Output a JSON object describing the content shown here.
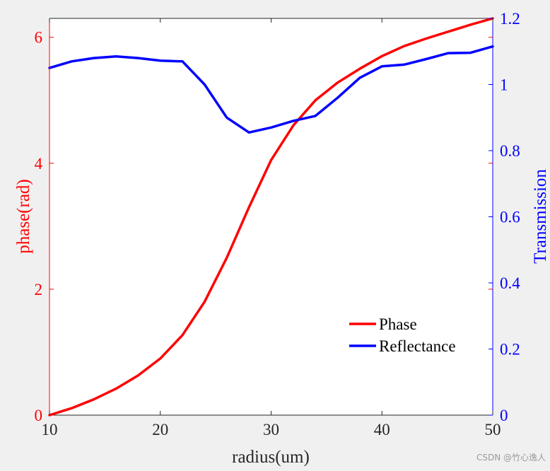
{
  "chart_data": {
    "type": "line",
    "xlabel": "radius(um)",
    "ylabel_left": "phase(rad)",
    "ylabel_right": "Transmission",
    "xlim": [
      10,
      50
    ],
    "ylim_left": [
      0,
      6.3
    ],
    "ylim_right": [
      0,
      1.2
    ],
    "x_ticks": [
      10,
      20,
      30,
      40,
      50
    ],
    "y_ticks_left": [
      0,
      2,
      4,
      6
    ],
    "y_ticks_right": [
      0,
      0.2,
      0.4,
      0.6,
      0.8,
      1,
      1.2
    ],
    "grid": false,
    "legend_position": "bottom-right",
    "colors": {
      "left_axis": "#ff0000",
      "right_axis": "#0000ff",
      "axis": "#262626"
    },
    "series": [
      {
        "name": "Phase",
        "axis": "left",
        "color": "#ff0000",
        "x": [
          10,
          12,
          14,
          16,
          18,
          20,
          22,
          24,
          26,
          28,
          30,
          32,
          34,
          36,
          38,
          40,
          42,
          44,
          46,
          48,
          50
        ],
        "values": [
          0,
          0.11,
          0.25,
          0.42,
          0.63,
          0.9,
          1.27,
          1.8,
          2.5,
          3.3,
          4.05,
          4.6,
          5.0,
          5.28,
          5.5,
          5.7,
          5.86,
          5.98,
          6.09,
          6.2,
          6.3
        ]
      },
      {
        "name": "Reflectance",
        "axis": "right",
        "color": "#0000ff",
        "x": [
          10,
          12,
          14,
          16,
          18,
          20,
          22,
          24,
          26,
          28,
          30,
          32,
          34,
          36,
          38,
          40,
          42,
          44,
          46,
          48,
          50
        ],
        "values": [
          1.05,
          1.07,
          1.08,
          1.085,
          1.08,
          1.072,
          1.07,
          1.0,
          0.9,
          0.855,
          0.87,
          0.89,
          0.905,
          0.96,
          1.02,
          1.055,
          1.06,
          1.077,
          1.095,
          1.096,
          1.115
        ]
      }
    ]
  },
  "watermark": "CSDN @竹心逸人"
}
